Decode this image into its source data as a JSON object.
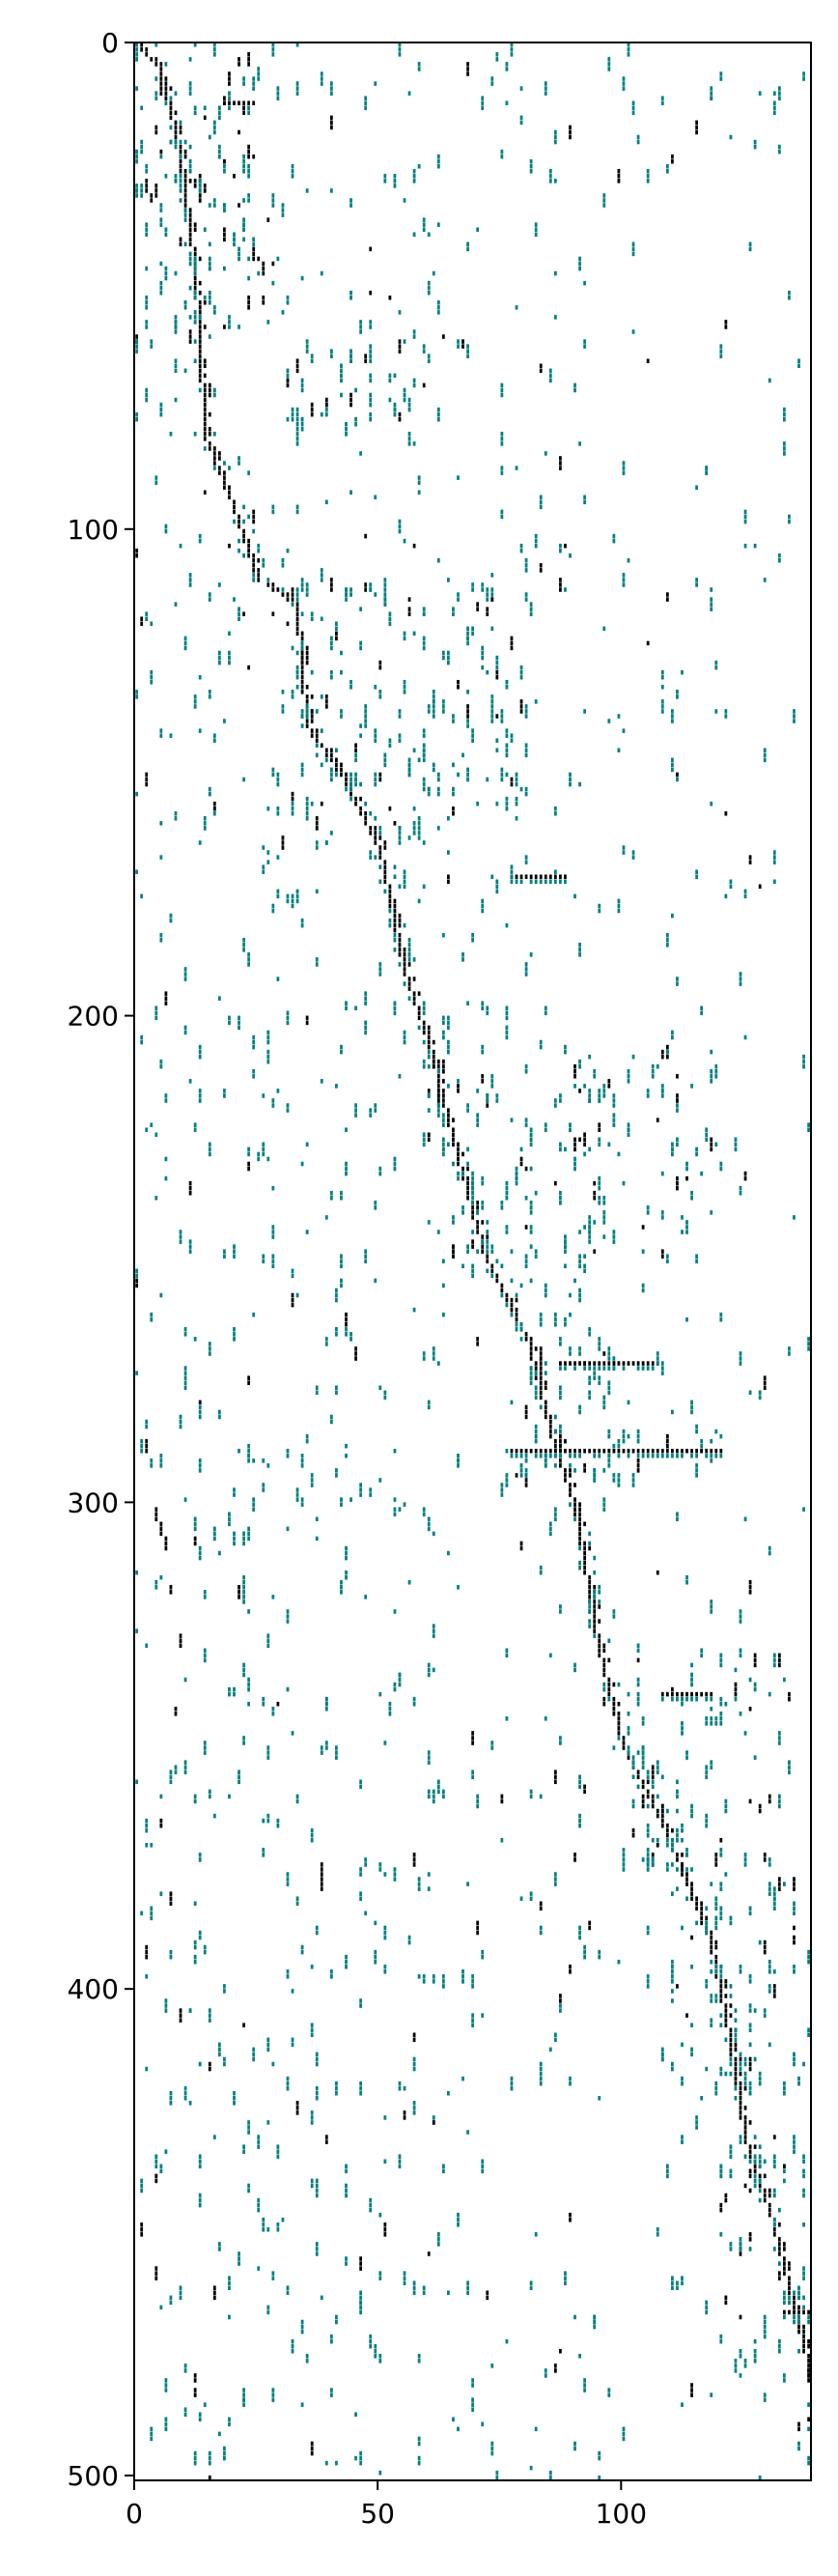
{
  "chart_data": {
    "type": "heatmap",
    "title": "",
    "xlabel": "",
    "ylabel": "",
    "xlim": [
      0,
      139
    ],
    "ylim": [
      501,
      0
    ],
    "x_ticks": [
      0,
      50,
      100
    ],
    "y_ticks": [
      0,
      100,
      200,
      300,
      400,
      500
    ],
    "x_tick_labels": [
      "0",
      "50",
      "100"
    ],
    "y_tick_labels": [
      "0",
      "100",
      "200",
      "300",
      "400",
      "500"
    ],
    "grid": false,
    "legend": "none",
    "colors": {
      "strong": "#000000",
      "weak": "#008080",
      "background": "#ffffff"
    },
    "diagonal_path": [
      [
        0,
        0
      ],
      [
        5,
        5
      ],
      [
        8,
        18
      ],
      [
        10,
        30
      ],
      [
        12,
        45
      ],
      [
        13,
        60
      ],
      [
        14,
        80
      ],
      [
        20,
        95
      ],
      [
        25,
        110
      ],
      [
        33,
        115
      ],
      [
        35,
        140
      ],
      [
        42,
        150
      ],
      [
        50,
        165
      ],
      [
        55,
        190
      ],
      [
        60,
        205
      ],
      [
        65,
        225
      ],
      [
        72,
        250
      ],
      [
        80,
        265
      ],
      [
        85,
        285
      ],
      [
        90,
        300
      ],
      [
        95,
        330
      ],
      [
        100,
        350
      ],
      [
        110,
        370
      ],
      [
        118,
        390
      ],
      [
        122,
        410
      ],
      [
        125,
        430
      ],
      [
        130,
        445
      ],
      [
        135,
        465
      ],
      [
        139,
        480
      ],
      [
        139,
        501
      ]
    ],
    "dense_blocks": [
      {
        "x": [
          0,
          25
        ],
        "y": [
          0,
          45
        ]
      },
      {
        "x": [
          5,
          30
        ],
        "y": [
          25,
          60
        ]
      },
      {
        "x": [
          33,
          62
        ],
        "y": [
          60,
          80
        ]
      },
      {
        "x": [
          33,
          80
        ],
        "y": [
          110,
          165
        ]
      },
      {
        "x": [
          60,
          120
        ],
        "y": [
          205,
          250
        ]
      },
      {
        "x": [
          77,
          100
        ],
        "y": [
          255,
          295
        ]
      },
      {
        "x": [
          75,
          120
        ],
        "y": [
          285,
          295
        ]
      },
      {
        "x": [
          100,
          135
        ],
        "y": [
          330,
          375
        ]
      },
      {
        "x": [
          110,
          139
        ],
        "y": [
          375,
          420
        ]
      },
      {
        "x": [
          120,
          139
        ],
        "y": [
          430,
          480
        ]
      }
    ],
    "row_segments": [
      {
        "x": [
          18,
          24
        ],
        "y": 12
      },
      {
        "x": [
          77,
          88
        ],
        "y": 171
      },
      {
        "x": [
          77,
          120
        ],
        "y": 289
      },
      {
        "x": [
          87,
          107
        ],
        "y": 271
      },
      {
        "x": [
          108,
          118
        ],
        "y": 339
      },
      {
        "x": [
          133,
          139
        ],
        "y": 466
      }
    ]
  }
}
